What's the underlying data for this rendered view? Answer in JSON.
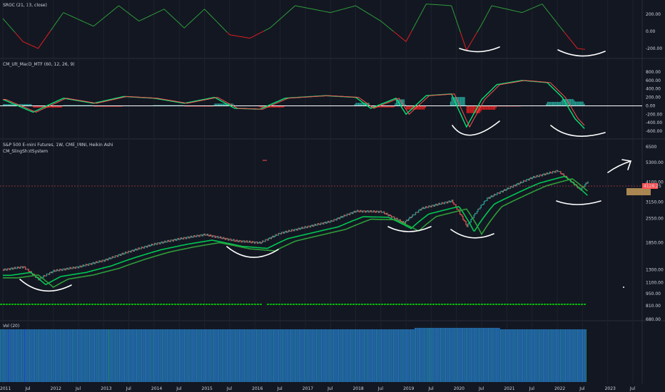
{
  "chart_data": [
    {
      "type": "line",
      "indicator": "SROC (21, 13, close)",
      "y_ticks": [
        "200.00",
        "0.00",
        "-200.00"
      ],
      "ylim": [
        -250,
        300
      ],
      "points": [
        [
          2011.0,
          150
        ],
        [
          2011.4,
          -120
        ],
        [
          2011.7,
          -200
        ],
        [
          2012.2,
          220
        ],
        [
          2012.8,
          60
        ],
        [
          2013.3,
          300
        ],
        [
          2013.7,
          120
        ],
        [
          2014.2,
          260
        ],
        [
          2014.6,
          40
        ],
        [
          2015.0,
          260
        ],
        [
          2015.5,
          -40
        ],
        [
          2015.9,
          -80
        ],
        [
          2016.3,
          40
        ],
        [
          2016.8,
          300
        ],
        [
          2017.5,
          220
        ],
        [
          2018.0,
          300
        ],
        [
          2018.5,
          120
        ],
        [
          2019.0,
          -120
        ],
        [
          2019.4,
          320
        ],
        [
          2019.9,
          300
        ],
        [
          2020.2,
          -220
        ],
        [
          2020.5,
          80
        ],
        [
          2020.7,
          300
        ],
        [
          2021.3,
          220
        ],
        [
          2021.7,
          320
        ],
        [
          2022.1,
          20
        ],
        [
          2022.4,
          -200
        ],
        [
          2022.55,
          -210
        ]
      ],
      "colors": {
        "pos": "#2e9e39",
        "neg": "#e11f1f"
      }
    },
    {
      "type": "line",
      "indicator": "CM_Ult_MacD_MTF (60, 12, 26, 9)",
      "y_ticks": [
        "800.00",
        "600.00",
        "400.00",
        "200.00",
        "0.00",
        "-200.00",
        "-400.00",
        "-600.00"
      ],
      "ylim": [
        -700,
        850
      ],
      "points": [
        [
          2011.0,
          150
        ],
        [
          2011.6,
          -150
        ],
        [
          2012.2,
          180
        ],
        [
          2012.8,
          60
        ],
        [
          2013.4,
          220
        ],
        [
          2014.0,
          180
        ],
        [
          2014.6,
          60
        ],
        [
          2015.2,
          200
        ],
        [
          2015.6,
          -60
        ],
        [
          2016.1,
          -80
        ],
        [
          2016.6,
          180
        ],
        [
          2017.4,
          240
        ],
        [
          2018.0,
          200
        ],
        [
          2018.3,
          -60
        ],
        [
          2018.8,
          180
        ],
        [
          2019.0,
          -200
        ],
        [
          2019.4,
          240
        ],
        [
          2019.9,
          280
        ],
        [
          2020.2,
          -500
        ],
        [
          2020.5,
          150
        ],
        [
          2020.8,
          500
        ],
        [
          2021.3,
          600
        ],
        [
          2021.8,
          550
        ],
        [
          2022.1,
          200
        ],
        [
          2022.35,
          -300
        ],
        [
          2022.55,
          -550
        ]
      ],
      "colors": {
        "macd": "#00e676",
        "signal": "#ff5252",
        "hist_pos": "#26a69a",
        "hist_neg": "#e11f1f"
      }
    },
    {
      "type": "line",
      "title": "S&P 500 E-mini Futures, 1W, CME_MINI, Heikin Ashi",
      "subtitle": "CM_SlingShotSystem",
      "y_ticks": [
        "6500",
        "5300.00",
        "4100.00",
        "3150.00",
        "2550.00",
        "1850.00",
        "1300.00",
        "1100.00",
        "950.00",
        "810.00",
        "680.00"
      ],
      "last_price": "4128.25",
      "log_scale": true,
      "points": [
        [
          2011.0,
          1300
        ],
        [
          2011.4,
          1350
        ],
        [
          2011.7,
          1150
        ],
        [
          2012.0,
          1280
        ],
        [
          2012.5,
          1350
        ],
        [
          2013.0,
          1470
        ],
        [
          2013.5,
          1650
        ],
        [
          2014.0,
          1820
        ],
        [
          2014.5,
          1950
        ],
        [
          2015.0,
          2060
        ],
        [
          2015.6,
          1900
        ],
        [
          2016.1,
          1850
        ],
        [
          2016.5,
          2100
        ],
        [
          2017.0,
          2270
        ],
        [
          2017.5,
          2450
        ],
        [
          2018.0,
          2800
        ],
        [
          2018.5,
          2780
        ],
        [
          2018.95,
          2400
        ],
        [
          2019.3,
          2900
        ],
        [
          2019.9,
          3200
        ],
        [
          2020.2,
          2300
        ],
        [
          2020.6,
          3300
        ],
        [
          2021.0,
          3750
        ],
        [
          2021.5,
          4350
        ],
        [
          2022.0,
          4750
        ],
        [
          2022.45,
          3700
        ],
        [
          2022.6,
          4130
        ]
      ],
      "colors": {
        "price": "#26a69a",
        "ema_fast": "#00c853",
        "ema_slow": "#2e9e39",
        "trend_bar": "#00e600"
      }
    },
    {
      "type": "bar",
      "indicator": "Vol (20)",
      "colors": {
        "bar_a": "#2962ff",
        "bar_b": "#26a69a"
      }
    }
  ],
  "x_labels": [
    "2011",
    "Jul",
    "2012",
    "Jul",
    "2013",
    "Jul",
    "2014",
    "Jul",
    "2015",
    "Jul",
    "2016",
    "Jul",
    "2017",
    "Jul",
    "2018",
    "Jul",
    "2019",
    "Jul",
    "2020",
    "Jul",
    "2021",
    "Jul",
    "2022",
    "Jul",
    "2023",
    "Jul"
  ],
  "colors": {
    "background": "#131722",
    "text": "#d1d4dc",
    "annotation": "#ffffff",
    "price_tag": "#ff5252",
    "target_box": "#c49a5b"
  }
}
